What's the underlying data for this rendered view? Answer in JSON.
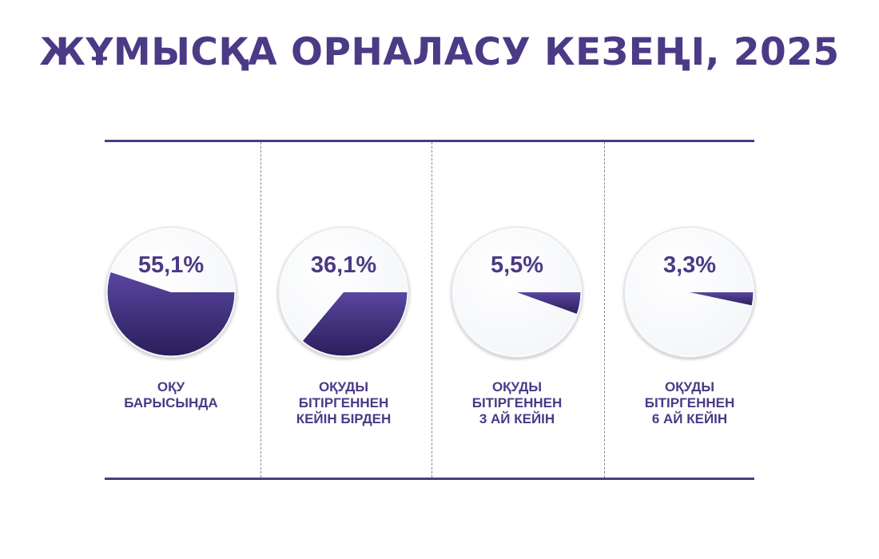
{
  "title": "ЖҰМЫСҚА ОРНАЛАСУ КЕЗЕҢІ, 2025",
  "colors": {
    "accent": "#4b3a86",
    "slice_dark": "#2a1e5a",
    "slice_light": "#5a46a0",
    "pie_face": "#f3f5f8"
  },
  "chart_data": {
    "type": "pie",
    "title": "ЖҰМЫСҚА ОРНАЛАСУ КЕЗЕҢІ, 2025",
    "unit": "%",
    "panels": [
      {
        "value": 55.1,
        "label_text": "55,1%",
        "caption": [
          "ОҚУ",
          "БАРЫСЫНДА"
        ]
      },
      {
        "value": 36.1,
        "label_text": "36,1%",
        "caption": [
          "ОҚУДЫ",
          "БІТІРГЕННЕН",
          "КЕЙІН БІРДЕН"
        ]
      },
      {
        "value": 5.5,
        "label_text": "5,5%",
        "caption": [
          "ОҚУДЫ",
          "БІТІРГЕННЕН",
          "3 АЙ КЕЙІН"
        ]
      },
      {
        "value": 3.3,
        "label_text": "3,3%",
        "caption": [
          "ОҚУДЫ",
          "БІТІРГЕННЕН",
          "6 АЙ КЕЙІН"
        ]
      }
    ]
  }
}
